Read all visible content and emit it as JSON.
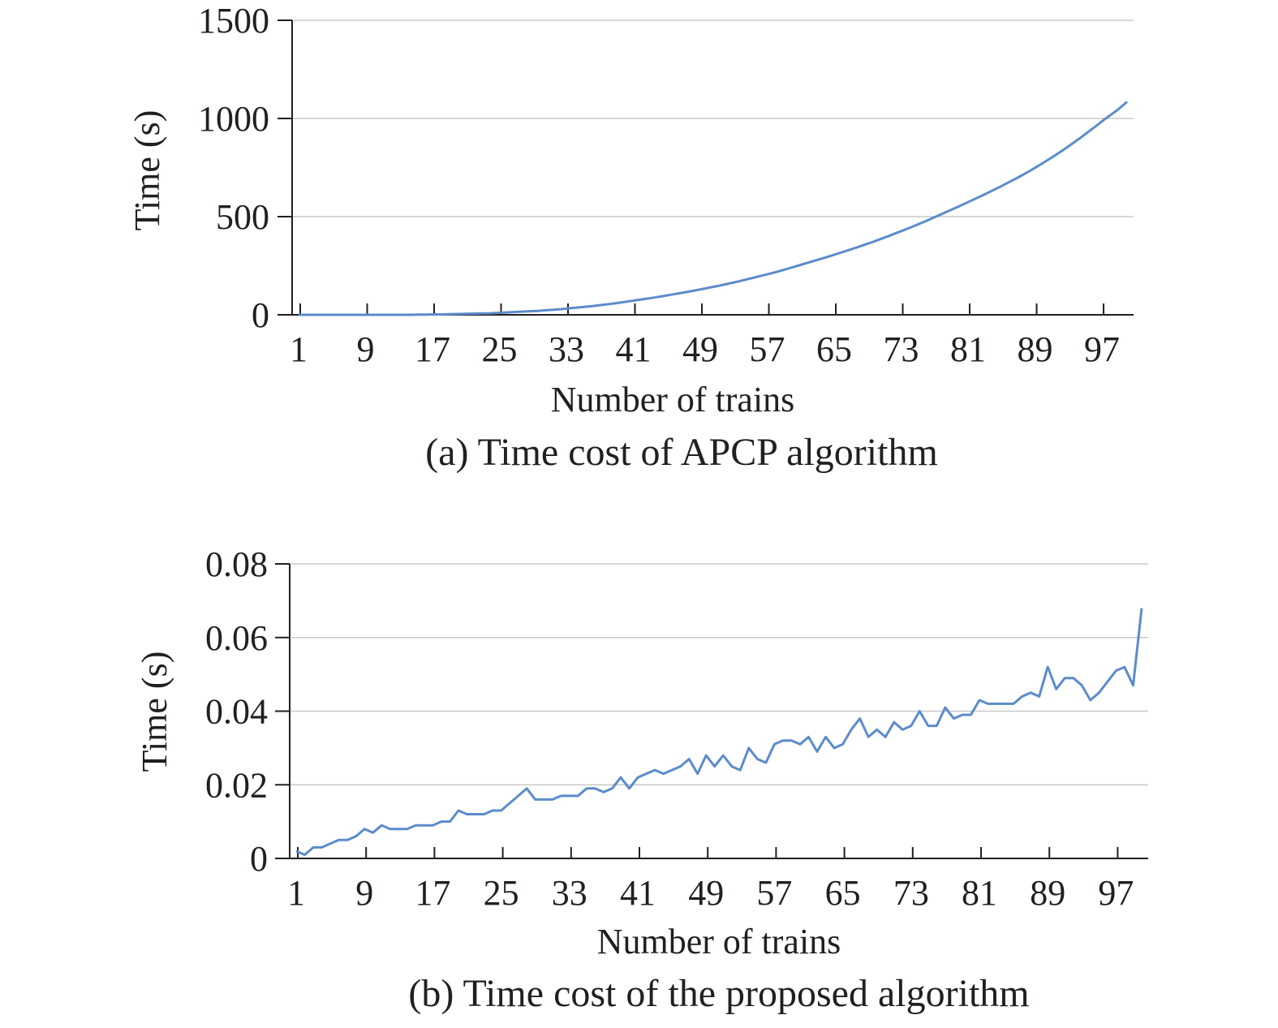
{
  "colors": {
    "series": "#5b8ccb",
    "grid": "#c8c8c8",
    "axis": "#231f20"
  },
  "chart_data": [
    {
      "type": "line",
      "caption": "(a) Time cost of APCP algorithm",
      "xlabel": "Number of trains",
      "ylabel": "Time (s)",
      "ylim": [
        0,
        1500
      ],
      "yticks": [
        "0",
        "500",
        "1000",
        "1500"
      ],
      "xlim": [
        1,
        100
      ],
      "xticks": [
        "1",
        "9",
        "17",
        "25",
        "33",
        "41",
        "49",
        "57",
        "65",
        "73",
        "81",
        "89",
        "97"
      ],
      "grid": true,
      "series": [
        {
          "values": [
            0,
            0,
            0,
            0,
            0,
            0,
            0,
            0,
            0,
            0,
            0,
            0,
            0,
            0,
            0,
            1,
            1,
            2,
            2,
            3,
            4,
            5,
            6,
            7,
            8,
            10,
            12,
            14,
            16,
            18,
            20,
            23,
            26,
            29,
            33,
            37,
            41,
            45,
            50,
            55,
            60,
            66,
            72,
            78,
            84,
            90,
            97,
            104,
            111,
            118,
            126,
            134,
            142,
            150,
            159,
            168,
            178,
            188,
            198,
            208,
            218,
            230,
            242,
            254,
            266,
            278,
            290,
            303,
            316,
            329,
            342,
            356,
            370,
            385,
            400,
            416,
            432,
            448,
            465,
            482,
            500,
            518,
            536,
            554,
            573,
            592,
            611,
            631,
            651,
            672,
            693,
            715,
            738,
            762,
            787,
            813,
            840,
            868,
            897,
            928,
            958,
            990,
            1020,
            1050,
            1085
          ]
        }
      ]
    },
    {
      "type": "line",
      "caption": "(b) Time cost of the proposed algorithm",
      "xlabel": "Number of trains",
      "ylabel": "Time (s)",
      "ylim": [
        0,
        0.08
      ],
      "yticks": [
        "0",
        "0.02",
        "0.04",
        "0.06",
        "0.08"
      ],
      "xlim": [
        1,
        100
      ],
      "xticks": [
        "1",
        "9",
        "17",
        "25",
        "33",
        "41",
        "49",
        "57",
        "65",
        "73",
        "81",
        "89",
        "97"
      ],
      "grid": true,
      "series": [
        {
          "values": [
            0.002,
            0.001,
            0.003,
            0.003,
            0.004,
            0.005,
            0.005,
            0.006,
            0.008,
            0.007,
            0.009,
            0.008,
            0.008,
            0.008,
            0.009,
            0.009,
            0.009,
            0.01,
            0.01,
            0.013,
            0.012,
            0.012,
            0.012,
            0.013,
            0.013,
            0.015,
            0.017,
            0.019,
            0.016,
            0.016,
            0.016,
            0.017,
            0.017,
            0.017,
            0.019,
            0.019,
            0.018,
            0.019,
            0.022,
            0.019,
            0.022,
            0.023,
            0.024,
            0.023,
            0.024,
            0.025,
            0.027,
            0.023,
            0.028,
            0.025,
            0.028,
            0.025,
            0.024,
            0.03,
            0.027,
            0.026,
            0.031,
            0.032,
            0.032,
            0.031,
            0.033,
            0.029,
            0.033,
            0.03,
            0.031,
            0.035,
            0.038,
            0.033,
            0.035,
            0.033,
            0.037,
            0.035,
            0.036,
            0.04,
            0.036,
            0.036,
            0.041,
            0.038,
            0.039,
            0.039,
            0.043,
            0.042,
            0.042,
            0.042,
            0.042,
            0.044,
            0.045,
            0.044,
            0.052,
            0.046,
            0.049,
            0.049,
            0.047,
            0.043,
            0.045,
            0.048,
            0.051,
            0.052,
            0.047,
            0.068
          ]
        }
      ]
    }
  ]
}
